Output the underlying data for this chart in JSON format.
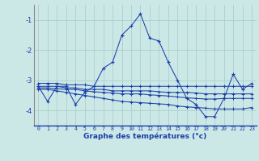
{
  "xlabel": "Graphe des températures (°c)",
  "background_color": "#cce8e6",
  "grid_color": "#aacfcc",
  "line_color": "#1a3eaa",
  "hours": [
    0,
    1,
    2,
    3,
    4,
    5,
    6,
    7,
    8,
    9,
    10,
    11,
    12,
    13,
    14,
    15,
    16,
    17,
    18,
    19,
    20,
    21,
    22,
    23
  ],
  "main_temps": [
    -3.2,
    -3.7,
    -3.2,
    -3.2,
    -3.8,
    -3.4,
    -3.2,
    -2.6,
    -2.4,
    -1.5,
    -1.2,
    -0.8,
    -1.6,
    -1.7,
    -2.4,
    -3.0,
    -3.6,
    -3.8,
    -4.2,
    -4.2,
    -3.6,
    -2.8,
    -3.3,
    -3.1
  ],
  "flat1": [
    -3.1,
    -3.1,
    -3.1,
    -3.15,
    -3.15,
    -3.15,
    -3.2,
    -3.2,
    -3.2,
    -3.2,
    -3.2,
    -3.2,
    -3.2,
    -3.2,
    -3.2,
    -3.2,
    -3.2,
    -3.2,
    -3.2,
    -3.2,
    -3.2,
    -3.2,
    -3.2,
    -3.2
  ],
  "flat2": [
    -3.2,
    -3.2,
    -3.2,
    -3.25,
    -3.25,
    -3.3,
    -3.3,
    -3.3,
    -3.35,
    -3.35,
    -3.35,
    -3.35,
    -3.35,
    -3.38,
    -3.4,
    -3.4,
    -3.4,
    -3.42,
    -3.45,
    -3.45,
    -3.45,
    -3.45,
    -3.45,
    -3.45
  ],
  "flat3": [
    -3.25,
    -3.25,
    -3.28,
    -3.3,
    -3.3,
    -3.35,
    -3.38,
    -3.4,
    -3.42,
    -3.45,
    -3.45,
    -3.45,
    -3.48,
    -3.5,
    -3.52,
    -3.55,
    -3.58,
    -3.6,
    -3.62,
    -3.62,
    -3.6,
    -3.6,
    -3.6,
    -3.6
  ],
  "flat4": [
    -3.3,
    -3.3,
    -3.35,
    -3.4,
    -3.45,
    -3.5,
    -3.55,
    -3.6,
    -3.65,
    -3.7,
    -3.72,
    -3.74,
    -3.76,
    -3.78,
    -3.8,
    -3.85,
    -3.88,
    -3.9,
    -3.92,
    -3.95,
    -3.95,
    -3.95,
    -3.95,
    -3.9
  ],
  "ylim": [
    -4.5,
    -0.5
  ],
  "yticks": [
    -4,
    -3,
    -2,
    -1
  ],
  "xlim": [
    -0.5,
    23.5
  ]
}
